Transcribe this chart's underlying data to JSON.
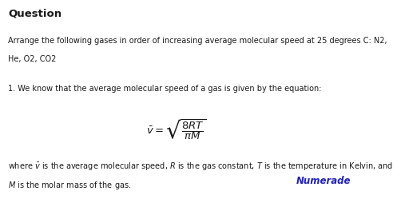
{
  "background_color": "#ffffff",
  "title": "Question",
  "title_fontsize": 9.5,
  "line1": "Arrange the following gases in order of increasing average molecular speed at 25 degrees C: N2,",
  "line2": "He, O2, CO2",
  "step_text": "1. We know that the average molecular speed of a gas is given by the equation:",
  "equation": "$\\bar{v} = \\sqrt{\\dfrac{8RT}{\\pi M}}$",
  "desc_line1": "where $\\bar{v}$ is the average molecular speed, $R$ is the gas constant, $T$ is the temperature in Kelvin, and",
  "desc_line2": "$M$ is the molar mass of the gas.",
  "brand": "Numerade",
  "brand_color": "#2222bb",
  "brand_fontsize": 8.5,
  "text_color": "#1a1a1a",
  "text_fontsize": 7.0,
  "eq_fontsize": 9.5
}
